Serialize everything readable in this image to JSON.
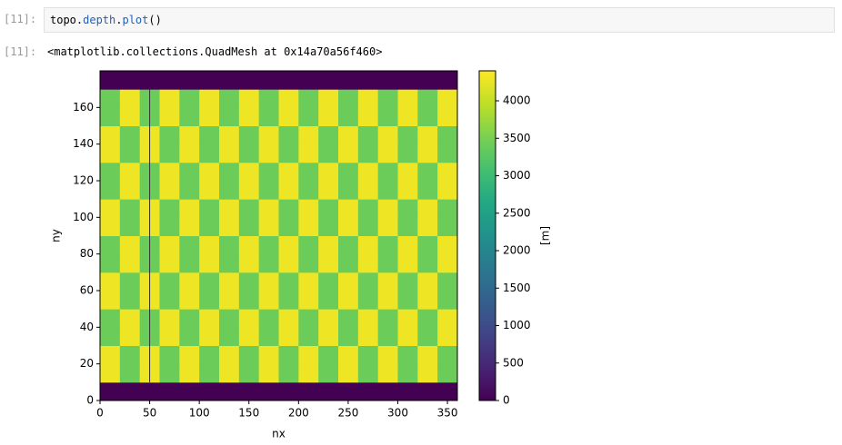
{
  "input": {
    "prompt": "[11]:",
    "code": [
      {
        "text": "topo.",
        "kind": "plain"
      },
      {
        "text": "depth",
        "kind": "attr"
      },
      {
        "text": ".",
        "kind": "plain"
      },
      {
        "text": "plot",
        "kind": "attr"
      },
      {
        "text": "()",
        "kind": "plain"
      }
    ]
  },
  "output": {
    "prompt": "[11]:",
    "text": "<matplotlib.collections.QuadMesh at 0x14a70a56f460>"
  },
  "chart_data": {
    "type": "heatmap",
    "x_label": "nx",
    "y_label": "ny",
    "colormap": "viridis",
    "x_edges": [
      0,
      20,
      40,
      60,
      80,
      100,
      120,
      140,
      160,
      180,
      200,
      220,
      240,
      260,
      280,
      300,
      320,
      340,
      360
    ],
    "y_edges": [
      0,
      10,
      20,
      30,
      40,
      50,
      60,
      70,
      80,
      90,
      100,
      110,
      120,
      130,
      140,
      150,
      160,
      170,
      180
    ],
    "values": [
      [
        0,
        0,
        0,
        0,
        0,
        0,
        0,
        0,
        0,
        0,
        0,
        0,
        0,
        0,
        0,
        0,
        0,
        0
      ],
      [
        4300,
        3400,
        4300,
        3400,
        4300,
        3400,
        4300,
        3400,
        4300,
        3400,
        4300,
        3400,
        4300,
        3400,
        4300,
        3400,
        4300,
        3400
      ],
      [
        4300,
        3400,
        4300,
        3400,
        4300,
        3400,
        4300,
        3400,
        4300,
        3400,
        4300,
        3400,
        4300,
        3400,
        4300,
        3400,
        4300,
        3400
      ],
      [
        3400,
        4300,
        3400,
        4300,
        3400,
        4300,
        3400,
        4300,
        3400,
        4300,
        3400,
        4300,
        3400,
        4300,
        3400,
        4300,
        3400,
        4300
      ],
      [
        3400,
        4300,
        3400,
        4300,
        3400,
        4300,
        3400,
        4300,
        3400,
        4300,
        3400,
        4300,
        3400,
        4300,
        3400,
        4300,
        3400,
        4300
      ],
      [
        4300,
        3400,
        4300,
        3400,
        4300,
        3400,
        4300,
        3400,
        4300,
        3400,
        4300,
        3400,
        4300,
        3400,
        4300,
        3400,
        4300,
        3400
      ],
      [
        4300,
        3400,
        4300,
        3400,
        4300,
        3400,
        4300,
        3400,
        4300,
        3400,
        4300,
        3400,
        4300,
        3400,
        4300,
        3400,
        4300,
        3400
      ],
      [
        3400,
        4300,
        3400,
        4300,
        3400,
        4300,
        3400,
        4300,
        3400,
        4300,
        3400,
        4300,
        3400,
        4300,
        3400,
        4300,
        3400,
        4300
      ],
      [
        3400,
        4300,
        3400,
        4300,
        3400,
        4300,
        3400,
        4300,
        3400,
        4300,
        3400,
        4300,
        3400,
        4300,
        3400,
        4300,
        3400,
        4300
      ],
      [
        4300,
        3400,
        4300,
        3400,
        4300,
        3400,
        4300,
        3400,
        4300,
        3400,
        4300,
        3400,
        4300,
        3400,
        4300,
        3400,
        4300,
        3400
      ],
      [
        4300,
        3400,
        4300,
        3400,
        4300,
        3400,
        4300,
        3400,
        4300,
        3400,
        4300,
        3400,
        4300,
        3400,
        4300,
        3400,
        4300,
        3400
      ],
      [
        3400,
        4300,
        3400,
        4300,
        3400,
        4300,
        3400,
        4300,
        3400,
        4300,
        3400,
        4300,
        3400,
        4300,
        3400,
        4300,
        3400,
        4300
      ],
      [
        3400,
        4300,
        3400,
        4300,
        3400,
        4300,
        3400,
        4300,
        3400,
        4300,
        3400,
        4300,
        3400,
        4300,
        3400,
        4300,
        3400,
        4300
      ],
      [
        4300,
        3400,
        4300,
        3400,
        4300,
        3400,
        4300,
        3400,
        4300,
        3400,
        4300,
        3400,
        4300,
        3400,
        4300,
        3400,
        4300,
        3400
      ],
      [
        4300,
        3400,
        4300,
        3400,
        4300,
        3400,
        4300,
        3400,
        4300,
        3400,
        4300,
        3400,
        4300,
        3400,
        4300,
        3400,
        4300,
        3400
      ],
      [
        3400,
        4300,
        3400,
        4300,
        3400,
        4300,
        3400,
        4300,
        3400,
        4300,
        3400,
        4300,
        3400,
        4300,
        3400,
        4300,
        3400,
        4300
      ],
      [
        3400,
        4300,
        3400,
        4300,
        3400,
        4300,
        3400,
        4300,
        3400,
        4300,
        3400,
        4300,
        3400,
        4300,
        3400,
        4300,
        3400,
        4300
      ],
      [
        0,
        0,
        0,
        0,
        0,
        0,
        0,
        0,
        0,
        0,
        0,
        0,
        0,
        0,
        0,
        0,
        0,
        0
      ]
    ],
    "xlim": [
      0,
      360
    ],
    "ylim": [
      0,
      180
    ],
    "xticks": [
      0,
      50,
      100,
      150,
      200,
      250,
      300,
      350
    ],
    "yticks": [
      0,
      20,
      40,
      60,
      80,
      100,
      120,
      140,
      160
    ],
    "line_x": 50,
    "line_y": [
      10,
      170
    ],
    "colorbar": {
      "label": "[m]",
      "lim": [
        0,
        4400
      ],
      "ticks": [
        0,
        500,
        1000,
        1500,
        2000,
        2500,
        3000,
        3500,
        4000
      ]
    }
  }
}
